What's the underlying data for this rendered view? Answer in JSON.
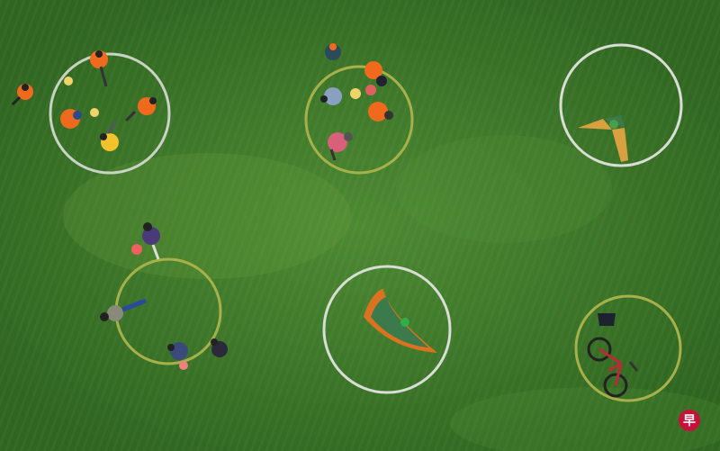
{
  "scene": {
    "description_free": true,
    "colors": {
      "grass": "#3f7a2a",
      "grass_dark": "#2f6520",
      "grass_light": "#5a9a3a",
      "white_circle": "#d9ddd6",
      "yellow_circle": "#a7b04a",
      "vest_orange": "#f06a1e",
      "kite_orange": "#d9731f",
      "kite_green": "#3b7a4a",
      "bike_red": "#c0283a"
    }
  },
  "watermark": {
    "glyph": "早",
    "color": "#c4123a"
  }
}
